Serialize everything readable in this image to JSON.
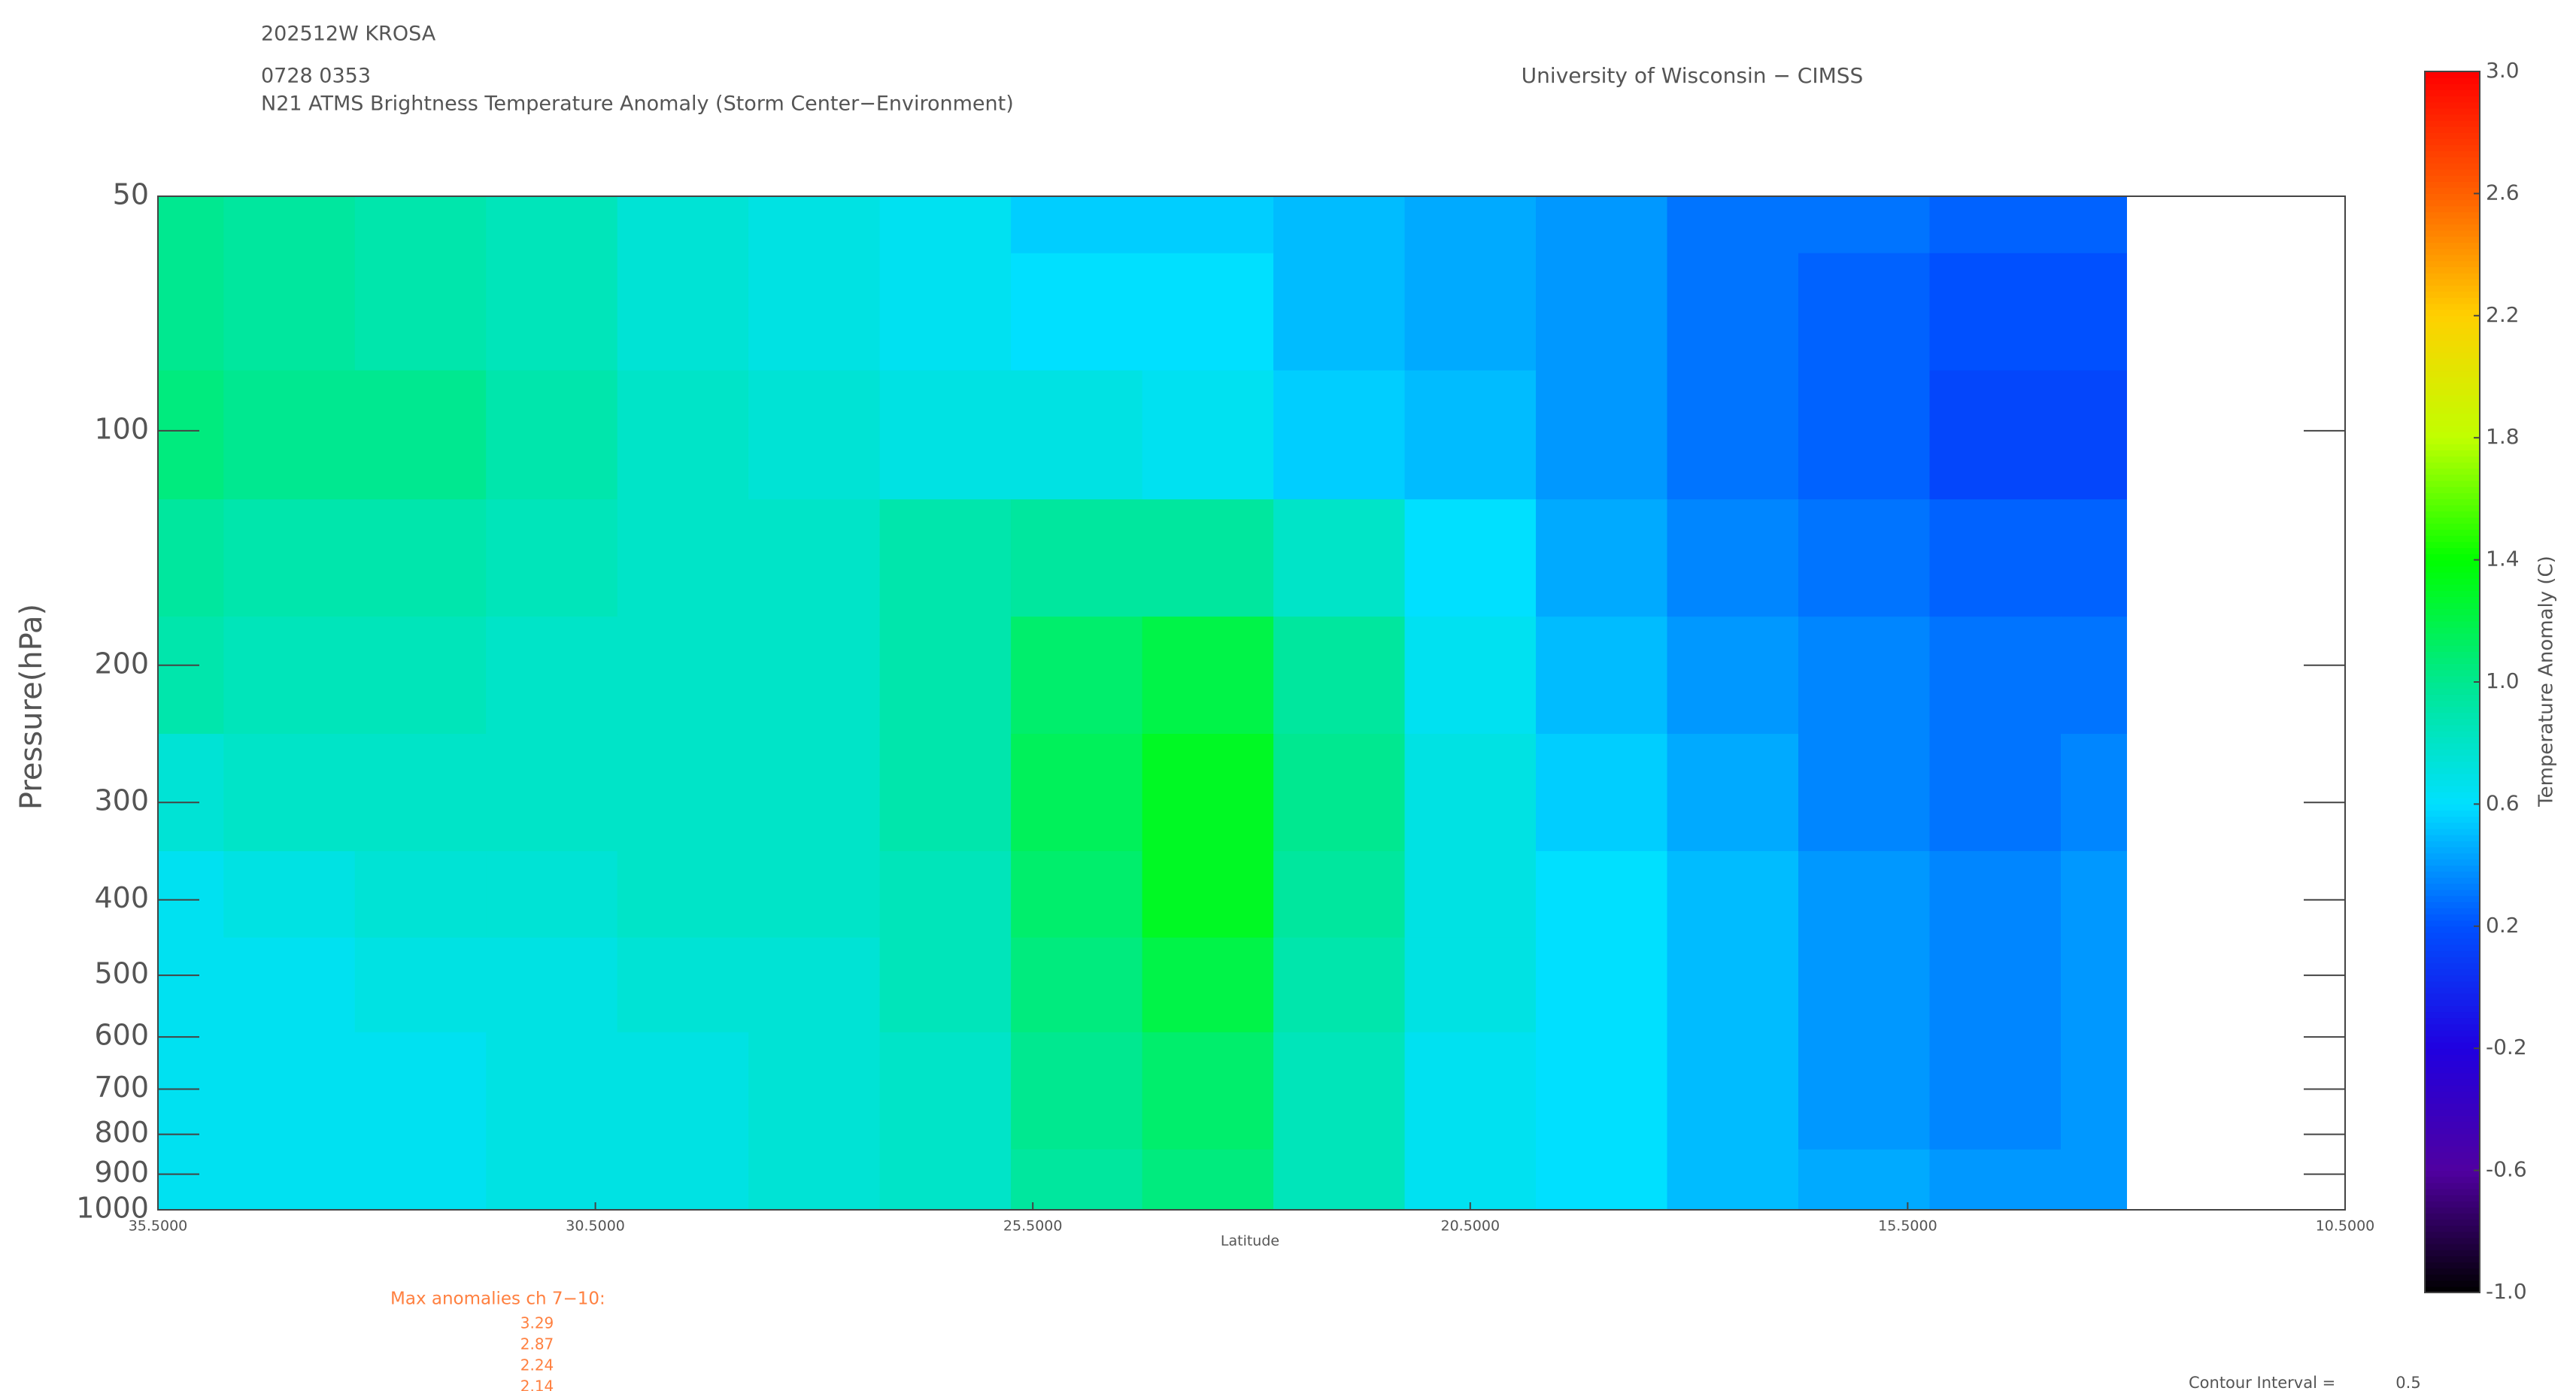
{
  "chart_data": {
    "type": "contour",
    "storm": "202512W KROSA",
    "datetime": "0728 0353",
    "title": "N21 ATMS Brightness Temperature Anomaly (Storm Center−Environment)",
    "source": "University of Wisconsin − CIMSS",
    "ylabel": "Pressure(hPa)",
    "xlabel": "Latitude",
    "colorbar_label": "Temperature Anomaly (C)",
    "max_anomalies_label": "Max anomalies ch 7−10:",
    "max_anomalies": [
      3.29,
      2.87,
      2.24,
      2.14
    ],
    "contour_interval_label": "Contour Interval =",
    "contour_interval": 0.5,
    "x": [
      35.5,
      34,
      32.5,
      31,
      29.5,
      28,
      26.5,
      25,
      23.5,
      22,
      20.5,
      19,
      17.5,
      16,
      14.5,
      13
    ],
    "y": [
      50,
      70,
      100,
      150,
      200,
      300,
      400,
      500,
      700,
      1000
    ],
    "z": [
      [
        1.0,
        0.95,
        0.9,
        0.85,
        0.75,
        0.7,
        0.65,
        0.55,
        0.55,
        0.5,
        0.45,
        0.4,
        0.3,
        0.3,
        0.25,
        0.25
      ],
      [
        1.0,
        0.95,
        0.9,
        0.85,
        0.75,
        0.7,
        0.65,
        0.6,
        0.6,
        0.5,
        0.45,
        0.4,
        0.3,
        0.25,
        0.2,
        0.2
      ],
      [
        1.05,
        1.0,
        1.0,
        0.9,
        0.8,
        0.75,
        0.7,
        0.7,
        0.65,
        0.55,
        0.5,
        0.4,
        0.3,
        0.25,
        0.15,
        0.15
      ],
      [
        0.95,
        0.9,
        0.9,
        0.85,
        0.8,
        0.8,
        0.9,
        0.95,
        0.95,
        0.8,
        0.6,
        0.45,
        0.35,
        0.3,
        0.25,
        0.25
      ],
      [
        0.9,
        0.85,
        0.85,
        0.8,
        0.8,
        0.8,
        0.9,
        1.1,
        1.2,
        0.95,
        0.65,
        0.5,
        0.4,
        0.35,
        0.3,
        0.3
      ],
      [
        0.75,
        0.8,
        0.8,
        0.8,
        0.8,
        0.8,
        0.9,
        1.15,
        1.3,
        1.0,
        0.7,
        0.55,
        0.45,
        0.35,
        0.3,
        0.35
      ],
      [
        0.65,
        0.7,
        0.75,
        0.75,
        0.8,
        0.8,
        0.85,
        1.1,
        1.3,
        0.95,
        0.7,
        0.6,
        0.5,
        0.4,
        0.35,
        0.4
      ],
      [
        0.65,
        0.65,
        0.7,
        0.7,
        0.75,
        0.75,
        0.85,
        1.05,
        1.2,
        0.9,
        0.7,
        0.6,
        0.5,
        0.4,
        0.35,
        0.4
      ],
      [
        0.65,
        0.65,
        0.65,
        0.7,
        0.7,
        0.75,
        0.8,
        1.0,
        1.1,
        0.85,
        0.65,
        0.6,
        0.5,
        0.4,
        0.35,
        0.4
      ],
      [
        0.65,
        0.65,
        0.65,
        0.7,
        0.7,
        0.75,
        0.8,
        0.95,
        1.05,
        0.85,
        0.65,
        0.6,
        0.5,
        0.45,
        0.4,
        0.4
      ]
    ],
    "xlim": [
      35.5,
      10.5
    ],
    "ylim": [
      50,
      1000
    ],
    "ylog": true,
    "xticks": [
      {
        "value": 35.5,
        "label": "35.5000"
      },
      {
        "value": 30.5,
        "label": "30.5000"
      },
      {
        "value": 25.5,
        "label": "25.5000"
      },
      {
        "value": 20.5,
        "label": "20.5000"
      },
      {
        "value": 15.5,
        "label": "15.5000"
      },
      {
        "value": 10.5,
        "label": "10.5000"
      }
    ],
    "yticks": [
      50,
      100,
      200,
      300,
      400,
      500,
      600,
      700,
      800,
      900,
      1000
    ],
    "zlim": [
      -1,
      3
    ],
    "zticks": [
      {
        "value": -1,
        "label": "-1.0"
      },
      {
        "value": -0.6,
        "label": "-0.6"
      },
      {
        "value": -0.2,
        "label": "-0.2"
      },
      {
        "value": 0.2,
        "label": "0.2"
      },
      {
        "value": 0.6,
        "label": "0.6"
      },
      {
        "value": 1,
        "label": "1.0"
      },
      {
        "value": 1.4,
        "label": "1.4"
      },
      {
        "value": 1.8,
        "label": "1.8"
      },
      {
        "value": 2.2,
        "label": "2.2"
      },
      {
        "value": 2.6,
        "label": "2.6"
      },
      {
        "value": 3,
        "label": "3.0"
      }
    ],
    "colormap": [
      "#000000",
      "#5000a0",
      "#2000e0",
      "#0050ff",
      "#00e0ff",
      "#00e890",
      "#00ff00",
      "#c0ff00",
      "#ffd000",
      "#ff6000",
      "#ff0000"
    ]
  }
}
